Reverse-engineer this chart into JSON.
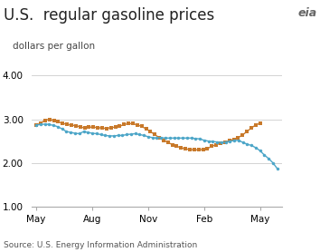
{
  "title": "U.S.  regular gasoline prices",
  "ylabel": "dollars per gallon",
  "source": "Source: U.S. Energy Information Administration",
  "ylim": [
    1.0,
    4.0
  ],
  "yticks": [
    1.0,
    2.0,
    3.0,
    4.0
  ],
  "xtick_labels": [
    "May",
    "Aug",
    "Nov",
    "Feb",
    "May"
  ],
  "xtick_positions": [
    0,
    13,
    26,
    39,
    52
  ],
  "xlim": [
    -1,
    57
  ],
  "series_2018": [
    2.87,
    2.91,
    2.98,
    3.0,
    2.97,
    2.94,
    2.91,
    2.88,
    2.87,
    2.85,
    2.83,
    2.8,
    2.82,
    2.82,
    2.81,
    2.8,
    2.79,
    2.81,
    2.82,
    2.84,
    2.88,
    2.9,
    2.9,
    2.87,
    2.84,
    2.78,
    2.72,
    2.65,
    2.58,
    2.52,
    2.47,
    2.42,
    2.38,
    2.35,
    2.32,
    2.31,
    2.3,
    2.3,
    2.31,
    2.33,
    2.38,
    2.42,
    2.45,
    2.48,
    2.51,
    2.54,
    2.58,
    2.64,
    2.72,
    2.8,
    2.87,
    2.91
  ],
  "series_2019": [
    2.87,
    2.88,
    2.89,
    2.88,
    2.86,
    2.83,
    2.78,
    2.72,
    2.7,
    2.68,
    2.67,
    2.72,
    2.7,
    2.68,
    2.67,
    2.65,
    2.63,
    2.62,
    2.62,
    2.63,
    2.63,
    2.65,
    2.66,
    2.67,
    2.65,
    2.63,
    2.6,
    2.58,
    2.57,
    2.58,
    2.57,
    2.57,
    2.57,
    2.57,
    2.57,
    2.57,
    2.57,
    2.56,
    2.55,
    2.52,
    2.5,
    2.49,
    2.48,
    2.47,
    2.48,
    2.5,
    2.51,
    2.52,
    2.47,
    2.43,
    2.4,
    2.35,
    2.28,
    2.18,
    2.1,
    2.0,
    1.87
  ],
  "color_2018": "#c8792a",
  "color_2019": "#4da6c8",
  "marker_2018": "s",
  "marker_2019": "o",
  "background_color": "#ffffff",
  "grid_color": "#cccccc",
  "title_fontsize": 12,
  "ylabel_fontsize": 7.5,
  "tick_fontsize": 7.5,
  "legend_fontsize": 7.5,
  "source_fontsize": 6.5
}
